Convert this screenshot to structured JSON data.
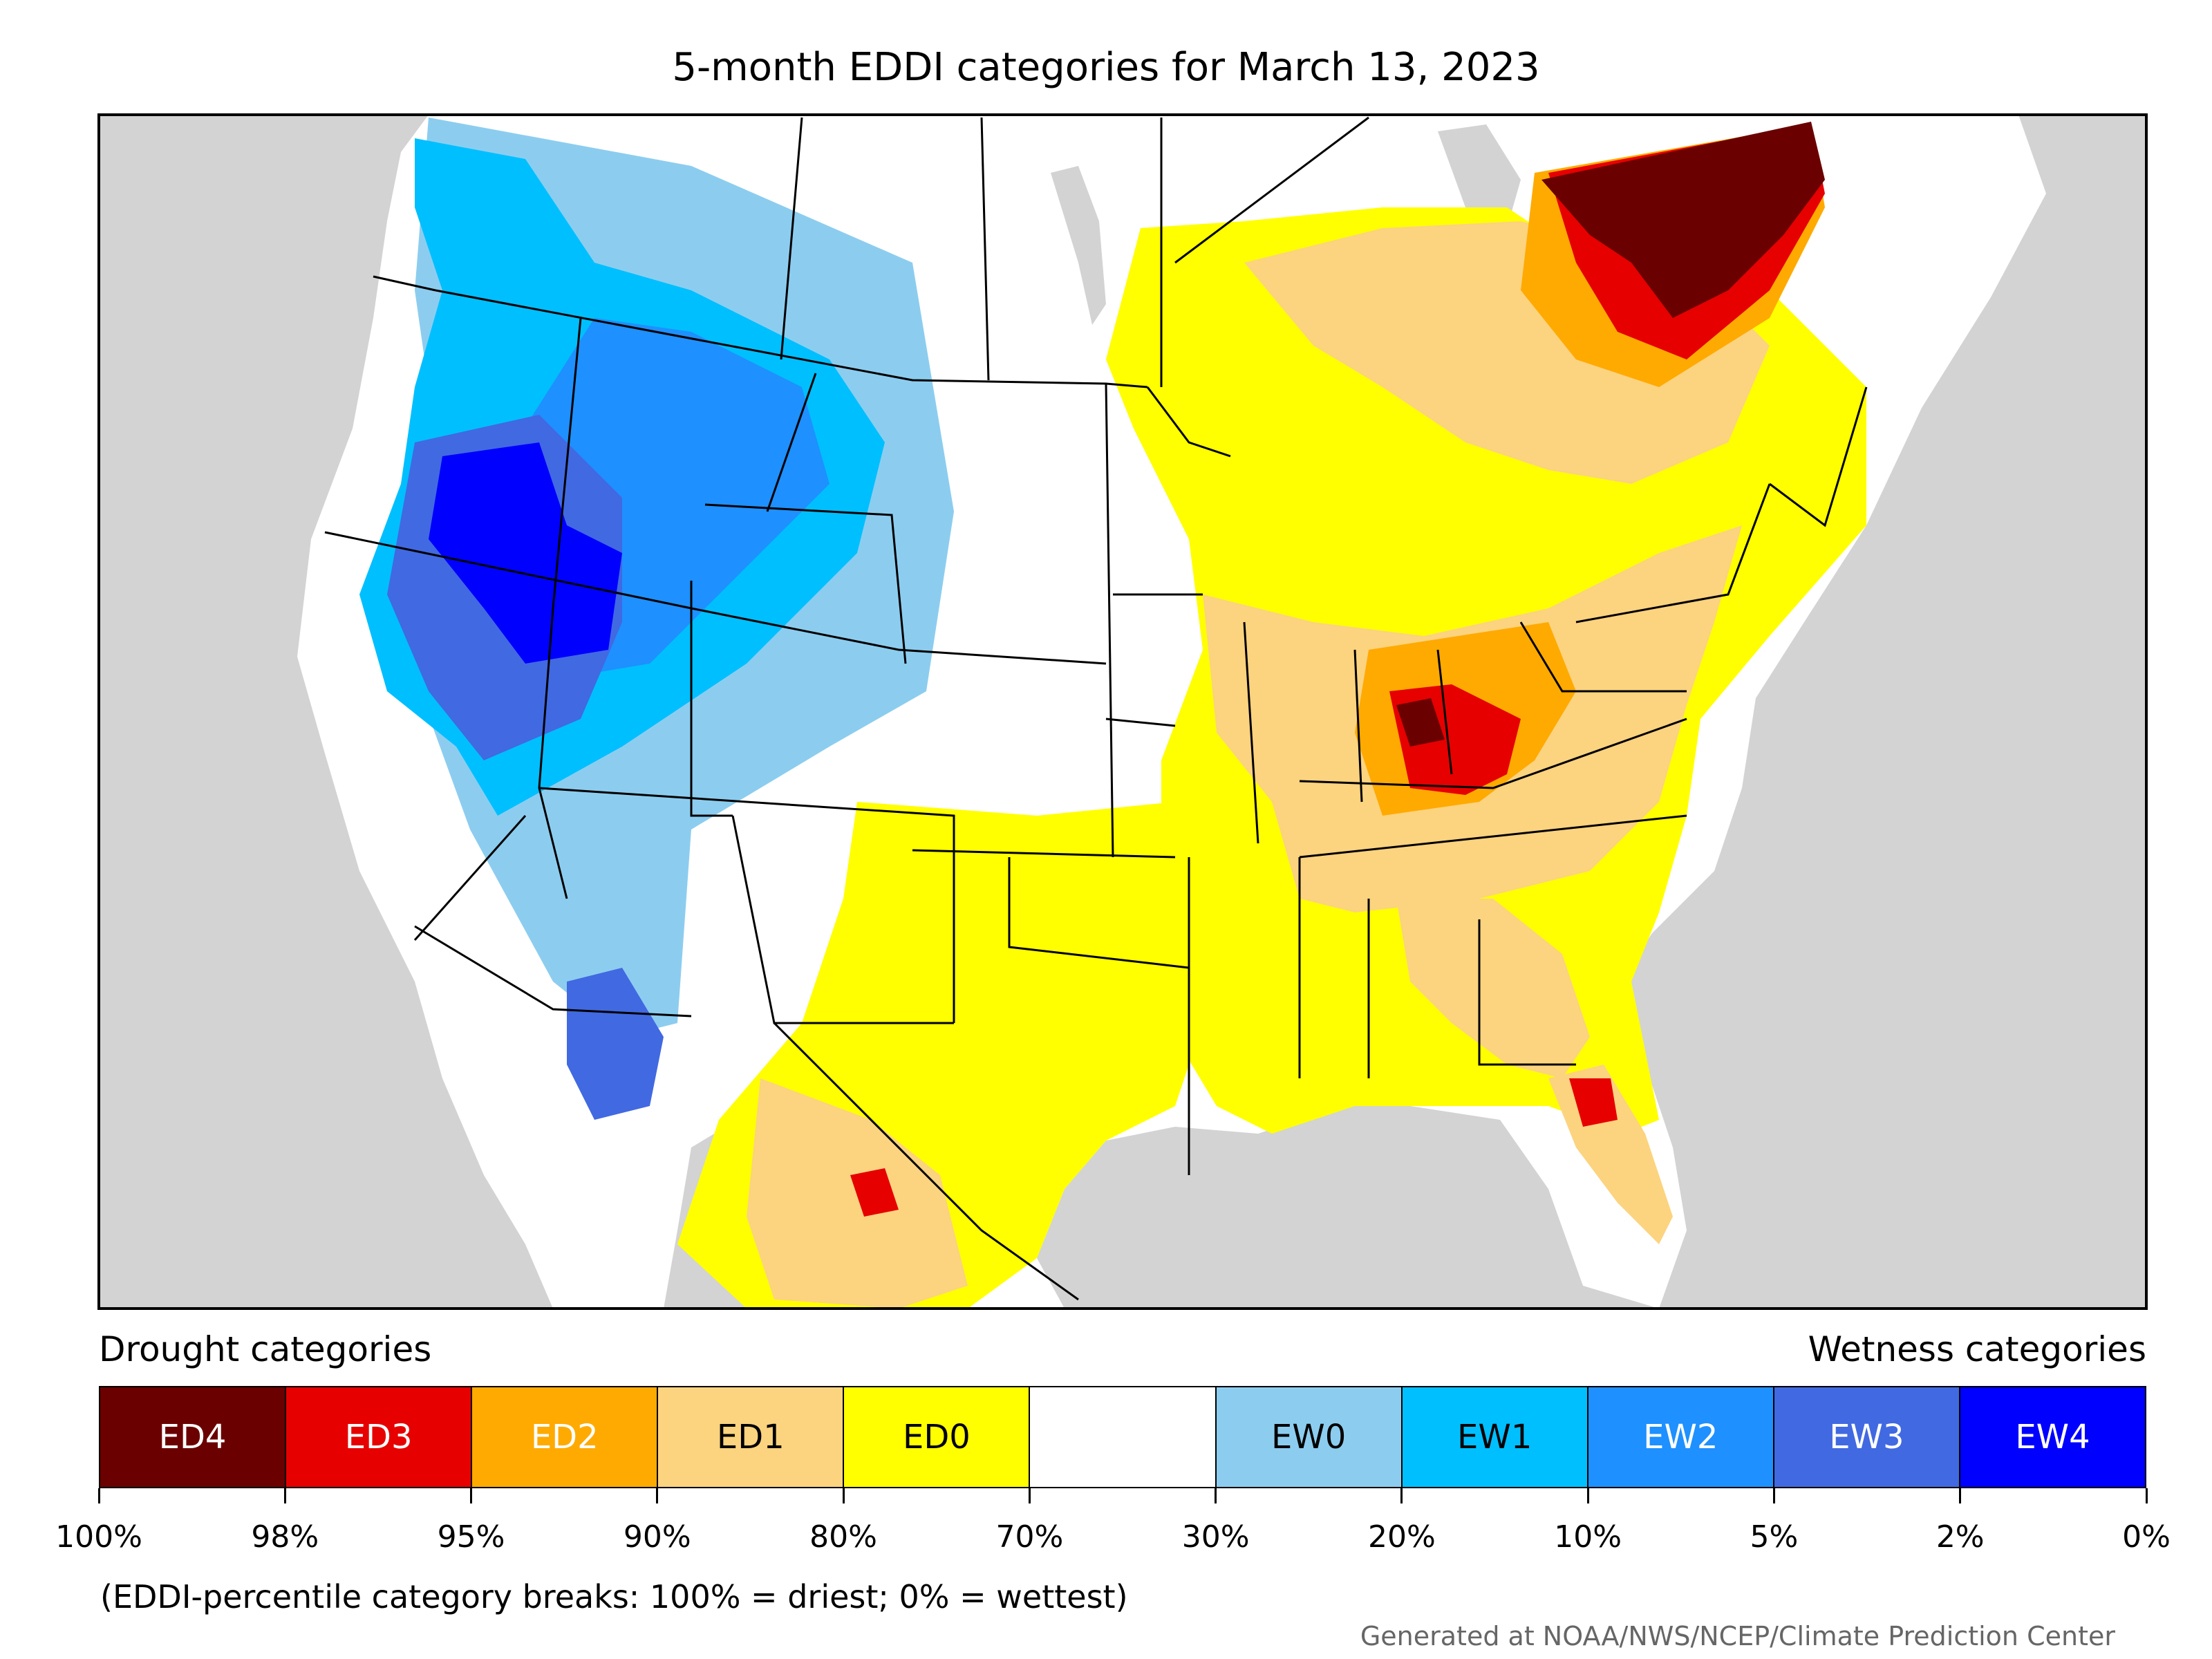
{
  "title": "5-month EDDI categories for March 13, 2023",
  "colors": {
    "land": "#ffffff",
    "water": "#d3d3d3",
    "border": "#000000"
  },
  "map_regions": [
    {
      "name": "pacific-northwest-wet",
      "category": "EW1"
    },
    {
      "name": "great-basin-wet",
      "category": "EW4"
    },
    {
      "name": "northern-rockies-wet",
      "category": "EW2"
    },
    {
      "name": "northern-plains-wet",
      "category": "EW0"
    },
    {
      "name": "arizona-wet",
      "category": "EW3"
    },
    {
      "name": "midwest-dry",
      "category": "ED1"
    },
    {
      "name": "indiana-ohio-dry",
      "category": "ED2"
    },
    {
      "name": "indiana-hotspot",
      "category": "ED4"
    },
    {
      "name": "quebec-dry",
      "category": "ED4"
    },
    {
      "name": "texas-dry",
      "category": "ED0"
    },
    {
      "name": "mexico-dry",
      "category": "ED1"
    },
    {
      "name": "southeast-dry",
      "category": "ED1"
    },
    {
      "name": "florida-dry",
      "category": "ED3"
    }
  ],
  "legend": {
    "drought_heading": "Drought categories",
    "wetness_heading": "Wetness categories",
    "categories": [
      {
        "label": "ED4",
        "color": "#6b0000",
        "text_color": "#ffffff"
      },
      {
        "label": "ED3",
        "color": "#e60000",
        "text_color": "#ffffff"
      },
      {
        "label": "ED2",
        "color": "#ffaa00",
        "text_color": "#ffffff"
      },
      {
        "label": "ED1",
        "color": "#fcd37f",
        "text_color": "#000000"
      },
      {
        "label": "ED0",
        "color": "#ffff00",
        "text_color": "#000000"
      },
      {
        "label": "",
        "color": "#ffffff",
        "text_color": "#000000"
      },
      {
        "label": "EW0",
        "color": "#8ccdef",
        "text_color": "#000000"
      },
      {
        "label": "EW1",
        "color": "#00bfff",
        "text_color": "#000000"
      },
      {
        "label": "EW2",
        "color": "#1e90ff",
        "text_color": "#ffffff"
      },
      {
        "label": "EW3",
        "color": "#4169e1",
        "text_color": "#ffffff"
      },
      {
        "label": "EW4",
        "color": "#0000ff",
        "text_color": "#ffffff"
      }
    ],
    "breaks": [
      "100%",
      "98%",
      "95%",
      "90%",
      "80%",
      "70%",
      "30%",
      "20%",
      "10%",
      "5%",
      "2%",
      "0%"
    ]
  },
  "note": "(EDDI-percentile category breaks: 100% = driest; 0% = wettest)",
  "credit": "Generated at NOAA/NWS/NCEP/Climate Prediction Center"
}
